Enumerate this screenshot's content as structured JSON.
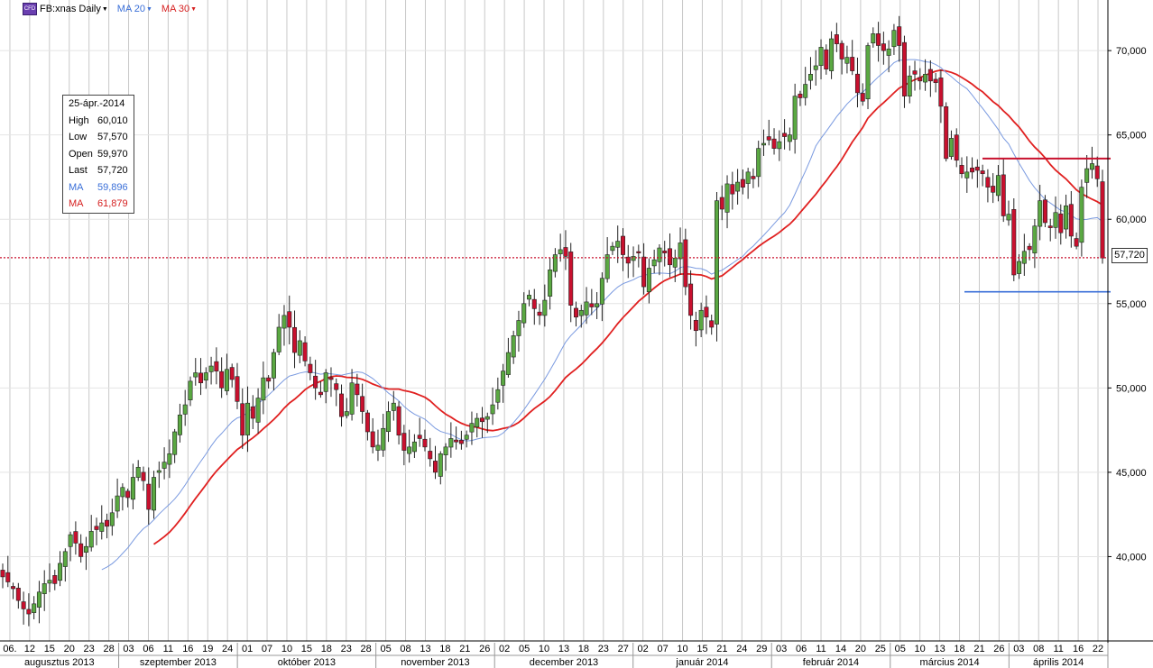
{
  "header": {
    "badge": "CFD",
    "symbol": "FB:xnas Daily",
    "ma20_label": "MA 20",
    "ma30_label": "MA 30"
  },
  "colors": {
    "up": "#5aa842",
    "down": "#c8102e",
    "ma20": "#7a9ae0",
    "ma30": "#e02020",
    "grid": "#c8c8c8"
  },
  "info": {
    "date": "25-ápr.-2014",
    "rows": [
      {
        "k": "High",
        "v": "60,010"
      },
      {
        "k": "Low",
        "v": "57,570"
      },
      {
        "k": "Open",
        "v": "59,970"
      },
      {
        "k": "Last",
        "v": "57,720"
      },
      {
        "k": "MA",
        "v": "59,896"
      },
      {
        "k": "MA",
        "v": "61,879"
      }
    ]
  },
  "last_price_label": "57,720",
  "chart_data": {
    "type": "candlestick",
    "y_axis": {
      "min": 35,
      "max": 73,
      "ticks": [
        40,
        45,
        50,
        55,
        60,
        65,
        70
      ],
      "tick_labels": [
        "40,000",
        "45,000",
        "50,000",
        "55,000",
        "60,000",
        "65,000",
        "70,000"
      ],
      "side": "right"
    },
    "last_price": 57.72,
    "day_labels": [
      "06.",
      "12",
      "15",
      "20",
      "23",
      "28",
      "03",
      "06",
      "11",
      "16",
      "19",
      "24",
      "01",
      "07",
      "10",
      "15",
      "18",
      "23",
      "28",
      "05",
      "08",
      "13",
      "18",
      "21",
      "26",
      "02",
      "05",
      "10",
      "13",
      "18",
      "23",
      "27",
      "02",
      "07",
      "10",
      "15",
      "21",
      "24",
      "29",
      "03",
      "06",
      "11",
      "14",
      "20",
      "25",
      "05",
      "10",
      "13",
      "18",
      "21",
      "26",
      "03",
      "08",
      "11",
      "16",
      "22"
    ],
    "month_labels": [
      "augusztus 2013",
      "szeptember 2013",
      "október 2013",
      "november 2013",
      "december 2013",
      "január 2014",
      "február 2014",
      "március 2014",
      "április 2014"
    ],
    "closes": [
      38.8,
      38.5,
      38.1,
      37.4,
      36.9,
      36.6,
      37.2,
      37.9,
      38.4,
      38.6,
      38.4,
      39.6,
      40.3,
      41.3,
      40.8,
      40.0,
      40.6,
      41.5,
      41.6,
      42.0,
      41.8,
      42.6,
      43.6,
      44.1,
      43.5,
      44.7,
      45.3,
      44.5,
      42.8,
      44.7,
      45.1,
      45.6,
      46.1,
      47.4,
      48.4,
      49.0,
      50.4,
      50.9,
      50.3,
      50.9,
      51.3,
      51.0,
      50.0,
      51.1,
      50.5,
      49.2,
      47.2,
      49.1,
      48.2,
      49.4,
      50.6,
      50.4,
      52.1,
      53.6,
      54.3,
      53.6,
      52.1,
      52.8,
      51.6,
      50.9,
      50.0,
      49.6,
      50.9,
      50.5,
      49.9,
      48.3,
      48.6,
      50.3,
      49.6,
      48.6,
      47.4,
      46.5,
      46.6,
      47.6,
      48.6,
      49.1,
      47.2,
      46.3,
      46.5,
      46.8,
      47.0,
      46.5,
      45.8,
      45.0,
      46.1,
      46.5,
      47.0,
      46.8,
      46.7,
      47.2,
      47.9,
      48.2,
      48.0,
      48.3,
      49.0,
      49.9,
      51.0,
      52.1,
      53.1,
      54.0,
      55.0,
      55.5,
      54.7,
      54.3,
      55.2,
      57.0,
      57.9,
      58.2,
      57.8,
      54.9,
      54.2,
      54.6,
      55.1,
      54.8,
      55.0,
      56.5,
      57.9,
      58.4,
      58.7,
      57.9,
      57.4,
      57.8,
      58.0,
      56.0,
      57.1,
      57.6,
      58.3,
      58.0,
      57.3,
      57.7,
      58.6,
      56.0,
      54.3,
      53.4,
      54.6,
      54.2,
      53.6,
      61.1,
      60.6,
      62.1,
      61.5,
      62.2,
      61.9,
      62.8,
      62.4,
      64.2,
      64.5,
      64.7,
      64.2,
      64.6,
      64.9,
      65.0,
      67.3,
      67.2,
      68.0,
      68.6,
      69.1,
      70.2,
      68.9,
      70.7,
      70.4,
      69.5,
      69.6,
      68.8,
      67.5,
      67.0,
      70.3,
      71.0,
      70.3,
      70.0,
      70.1,
      71.2,
      70.3,
      67.3,
      68.5,
      68.6,
      68.2,
      68.6,
      68.2,
      68.1,
      66.7,
      63.6,
      64.8,
      63.5,
      62.7,
      62.8,
      62.8,
      62.9,
      62.7,
      61.9,
      61.6,
      62.6,
      60.2,
      60.3,
      56.7,
      57.5,
      58.1,
      58.2,
      59.6,
      61.1,
      59.8,
      59.5,
      60.4,
      59.2,
      60.8,
      59.0,
      58.4,
      61.9,
      63.0,
      63.3,
      62.4,
      57.7
    ],
    "ma20_label": "MA 20",
    "ma30_label": "MA 30",
    "ma20_current": 59.896,
    "ma30_current": 61.879,
    "resistance_level": 63.6,
    "support_level": 55.7
  }
}
